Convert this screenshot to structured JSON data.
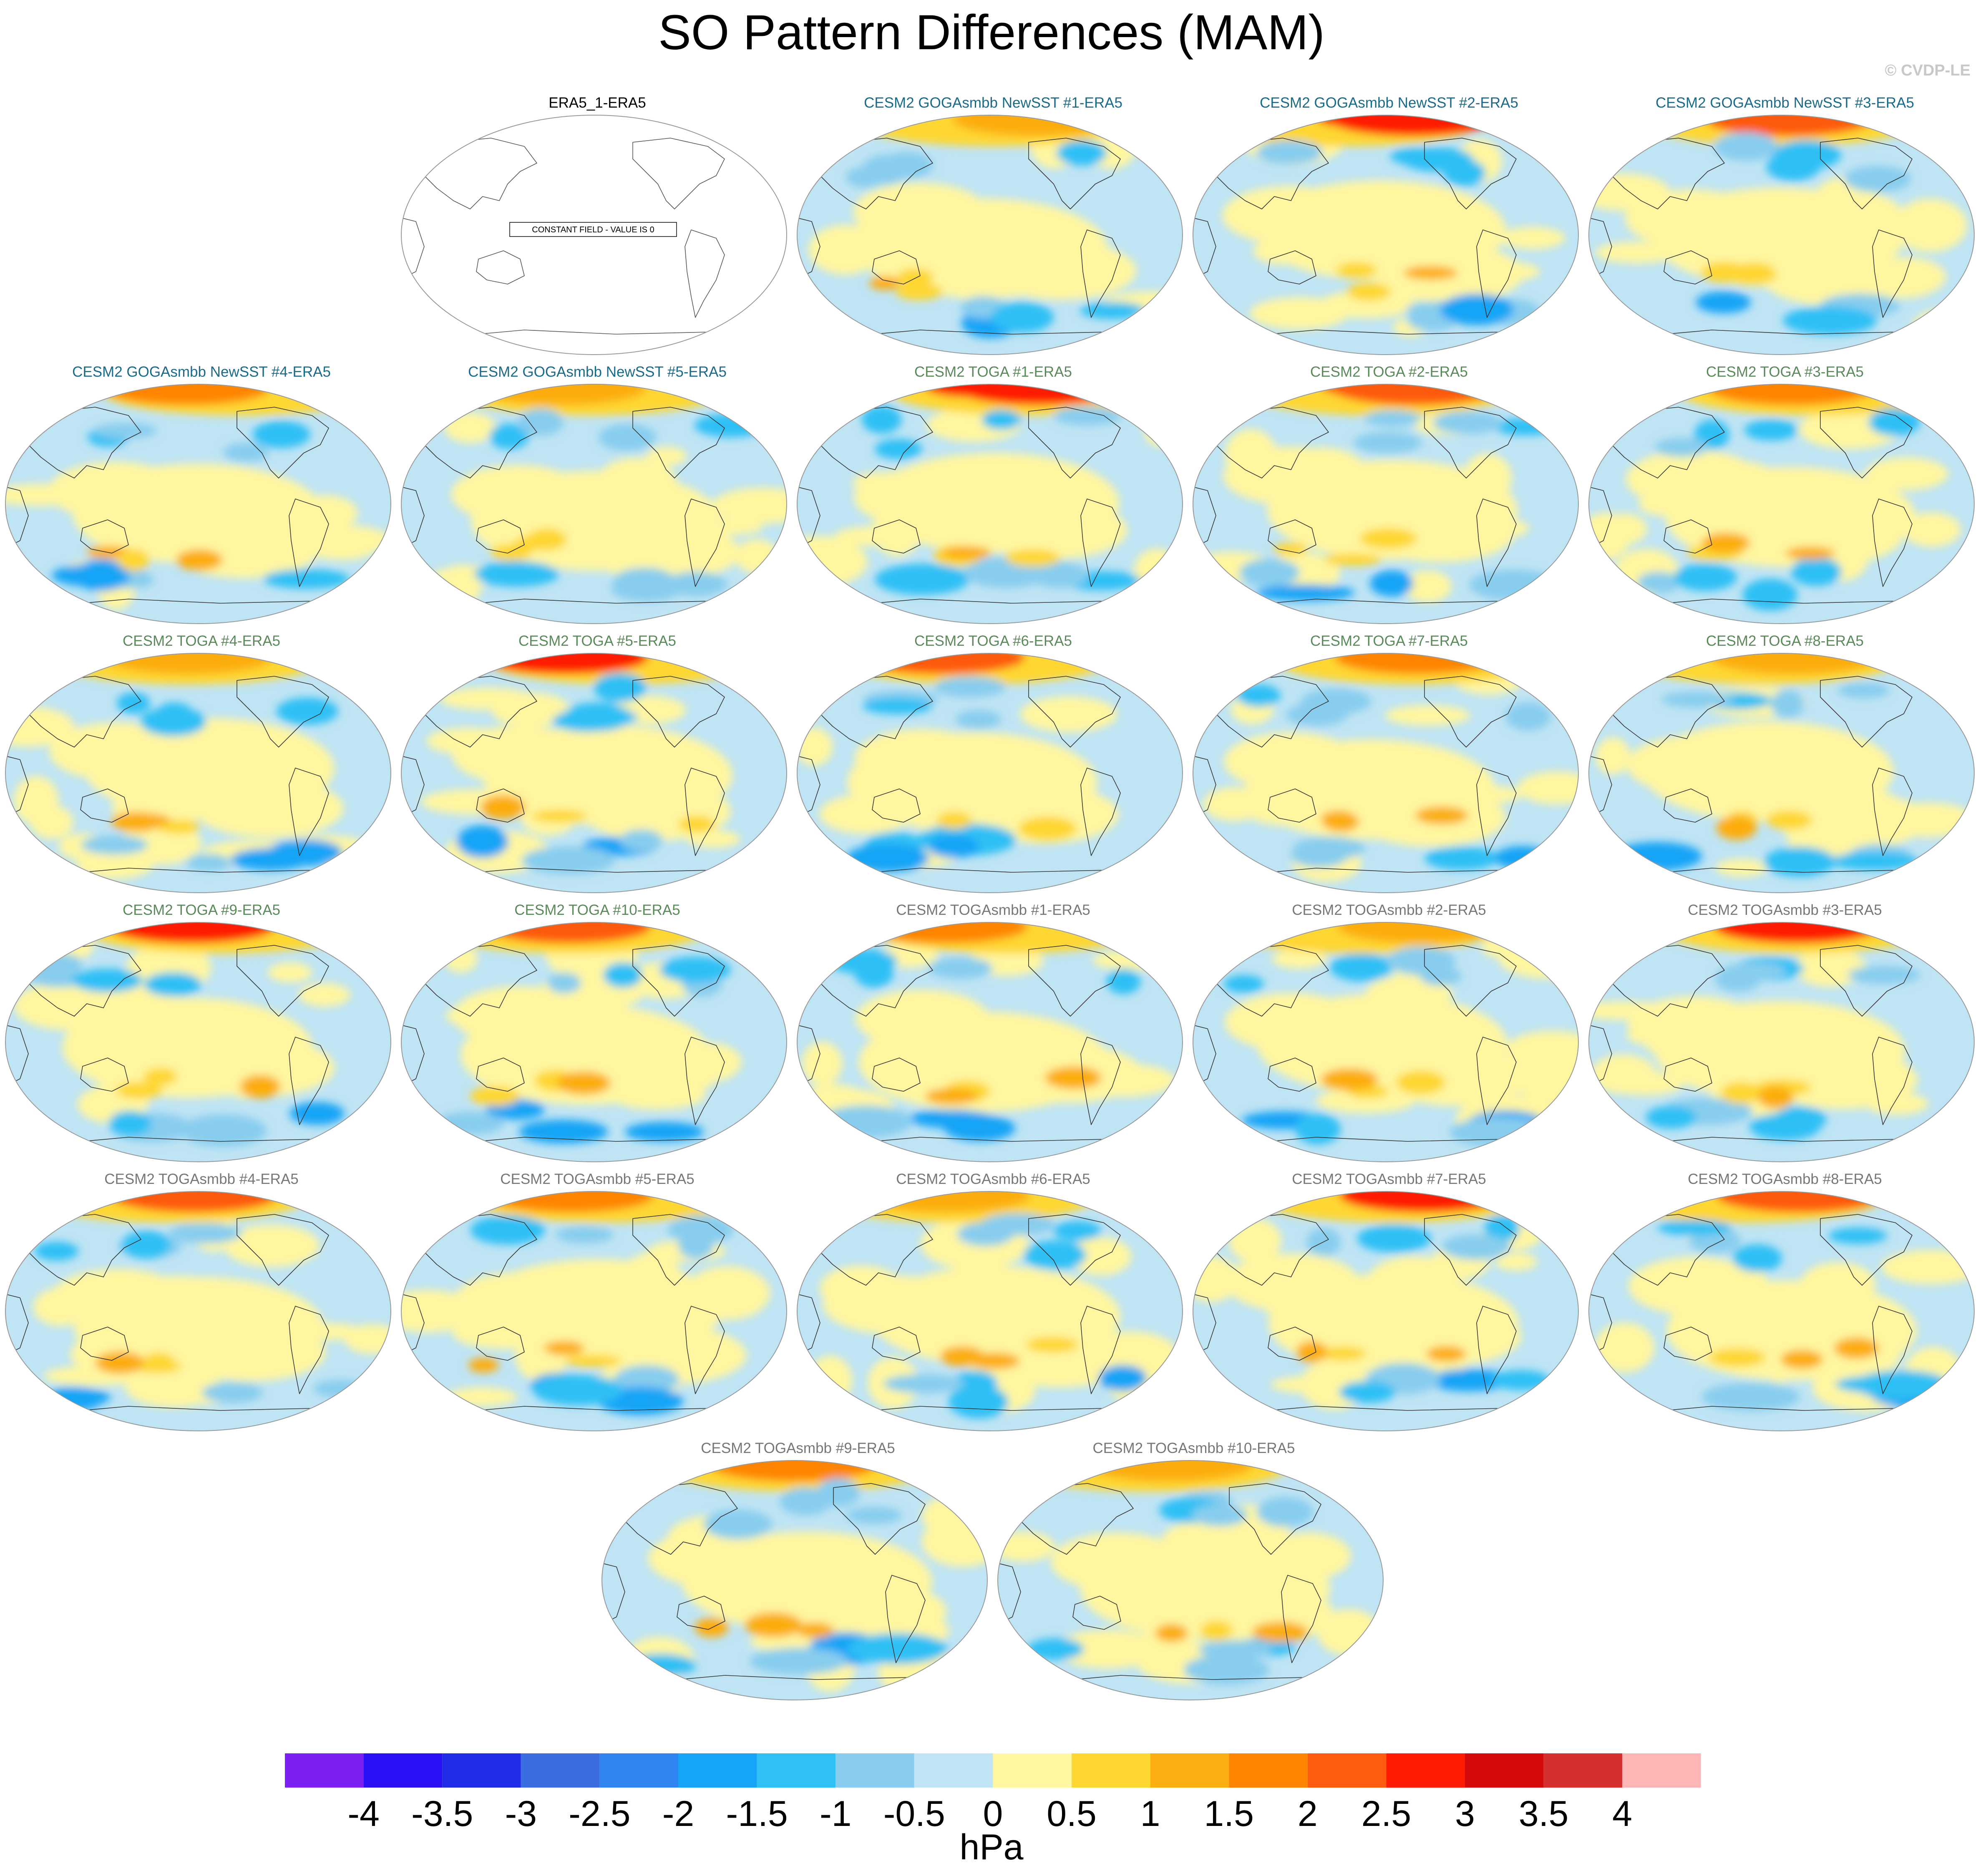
{
  "title": "SO Pattern Differences (MAM)",
  "watermark": "© CVDP-LE",
  "units": "hPa",
  "colorbar": {
    "ticks": [
      "-4",
      "-3.5",
      "-3",
      "-2.5",
      "-2",
      "-1.5",
      "-1",
      "-0.5",
      "0",
      "0.5",
      "1",
      "1.5",
      "2",
      "2.5",
      "3",
      "3.5",
      "4"
    ],
    "colors": [
      "#7b1ff2",
      "#2a10f5",
      "#1f2ce8",
      "#3a6ee0",
      "#2f86f2",
      "#16a4f6",
      "#2fc0f5",
      "#88cdee",
      "#bfe4f4",
      "#fff6a0",
      "#fed730",
      "#fcad10",
      "#ff8500",
      "#fe5a10",
      "#ff1a00",
      "#d40a0a",
      "#d62f2f",
      "#ffb5b5"
    ]
  },
  "constant_field_note": "CONSTANT FIELD - VALUE IS 0",
  "panels": [
    {
      "title": "ERA5_1-ERA5",
      "color": "#000000",
      "constant": true
    },
    {
      "title": "CESM2 GOGAsmbb NewSST #1-ERA5",
      "color": "#1a6a8a"
    },
    {
      "title": "CESM2 GOGAsmbb NewSST #2-ERA5",
      "color": "#1a6a8a"
    },
    {
      "title": "CESM2 GOGAsmbb NewSST #3-ERA5",
      "color": "#1a6a8a"
    },
    {
      "title": "CESM2 GOGAsmbb NewSST #4-ERA5",
      "color": "#1a6a8a"
    },
    {
      "title": "CESM2 GOGAsmbb NewSST #5-ERA5",
      "color": "#1a6a8a"
    },
    {
      "title": "CESM2 TOGA #1-ERA5",
      "color": "#5a8a5a"
    },
    {
      "title": "CESM2 TOGA #2-ERA5",
      "color": "#5a8a5a"
    },
    {
      "title": "CESM2 TOGA #3-ERA5",
      "color": "#5a8a5a"
    },
    {
      "title": "CESM2 TOGA #4-ERA5",
      "color": "#5a8a5a"
    },
    {
      "title": "CESM2 TOGA #5-ERA5",
      "color": "#5a8a5a"
    },
    {
      "title": "CESM2 TOGA #6-ERA5",
      "color": "#5a8a5a"
    },
    {
      "title": "CESM2 TOGA #7-ERA5",
      "color": "#5a8a5a"
    },
    {
      "title": "CESM2 TOGA #8-ERA5",
      "color": "#5a8a5a"
    },
    {
      "title": "CESM2 TOGA #9-ERA5",
      "color": "#5a8a5a"
    },
    {
      "title": "CESM2 TOGA #10-ERA5",
      "color": "#5a8a5a"
    },
    {
      "title": "CESM2 TOGAsmbb #1-ERA5",
      "color": "#777777"
    },
    {
      "title": "CESM2 TOGAsmbb #2-ERA5",
      "color": "#777777"
    },
    {
      "title": "CESM2 TOGAsmbb #3-ERA5",
      "color": "#777777"
    },
    {
      "title": "CESM2 TOGAsmbb #4-ERA5",
      "color": "#777777"
    },
    {
      "title": "CESM2 TOGAsmbb #5-ERA5",
      "color": "#777777"
    },
    {
      "title": "CESM2 TOGAsmbb #6-ERA5",
      "color": "#777777"
    },
    {
      "title": "CESM2 TOGAsmbb #7-ERA5",
      "color": "#777777"
    },
    {
      "title": "CESM2 TOGAsmbb #8-ERA5",
      "color": "#777777"
    },
    {
      "title": "CESM2 TOGAsmbb #9-ERA5",
      "color": "#777777"
    },
    {
      "title": "CESM2 TOGAsmbb #10-ERA5",
      "color": "#777777"
    }
  ]
}
